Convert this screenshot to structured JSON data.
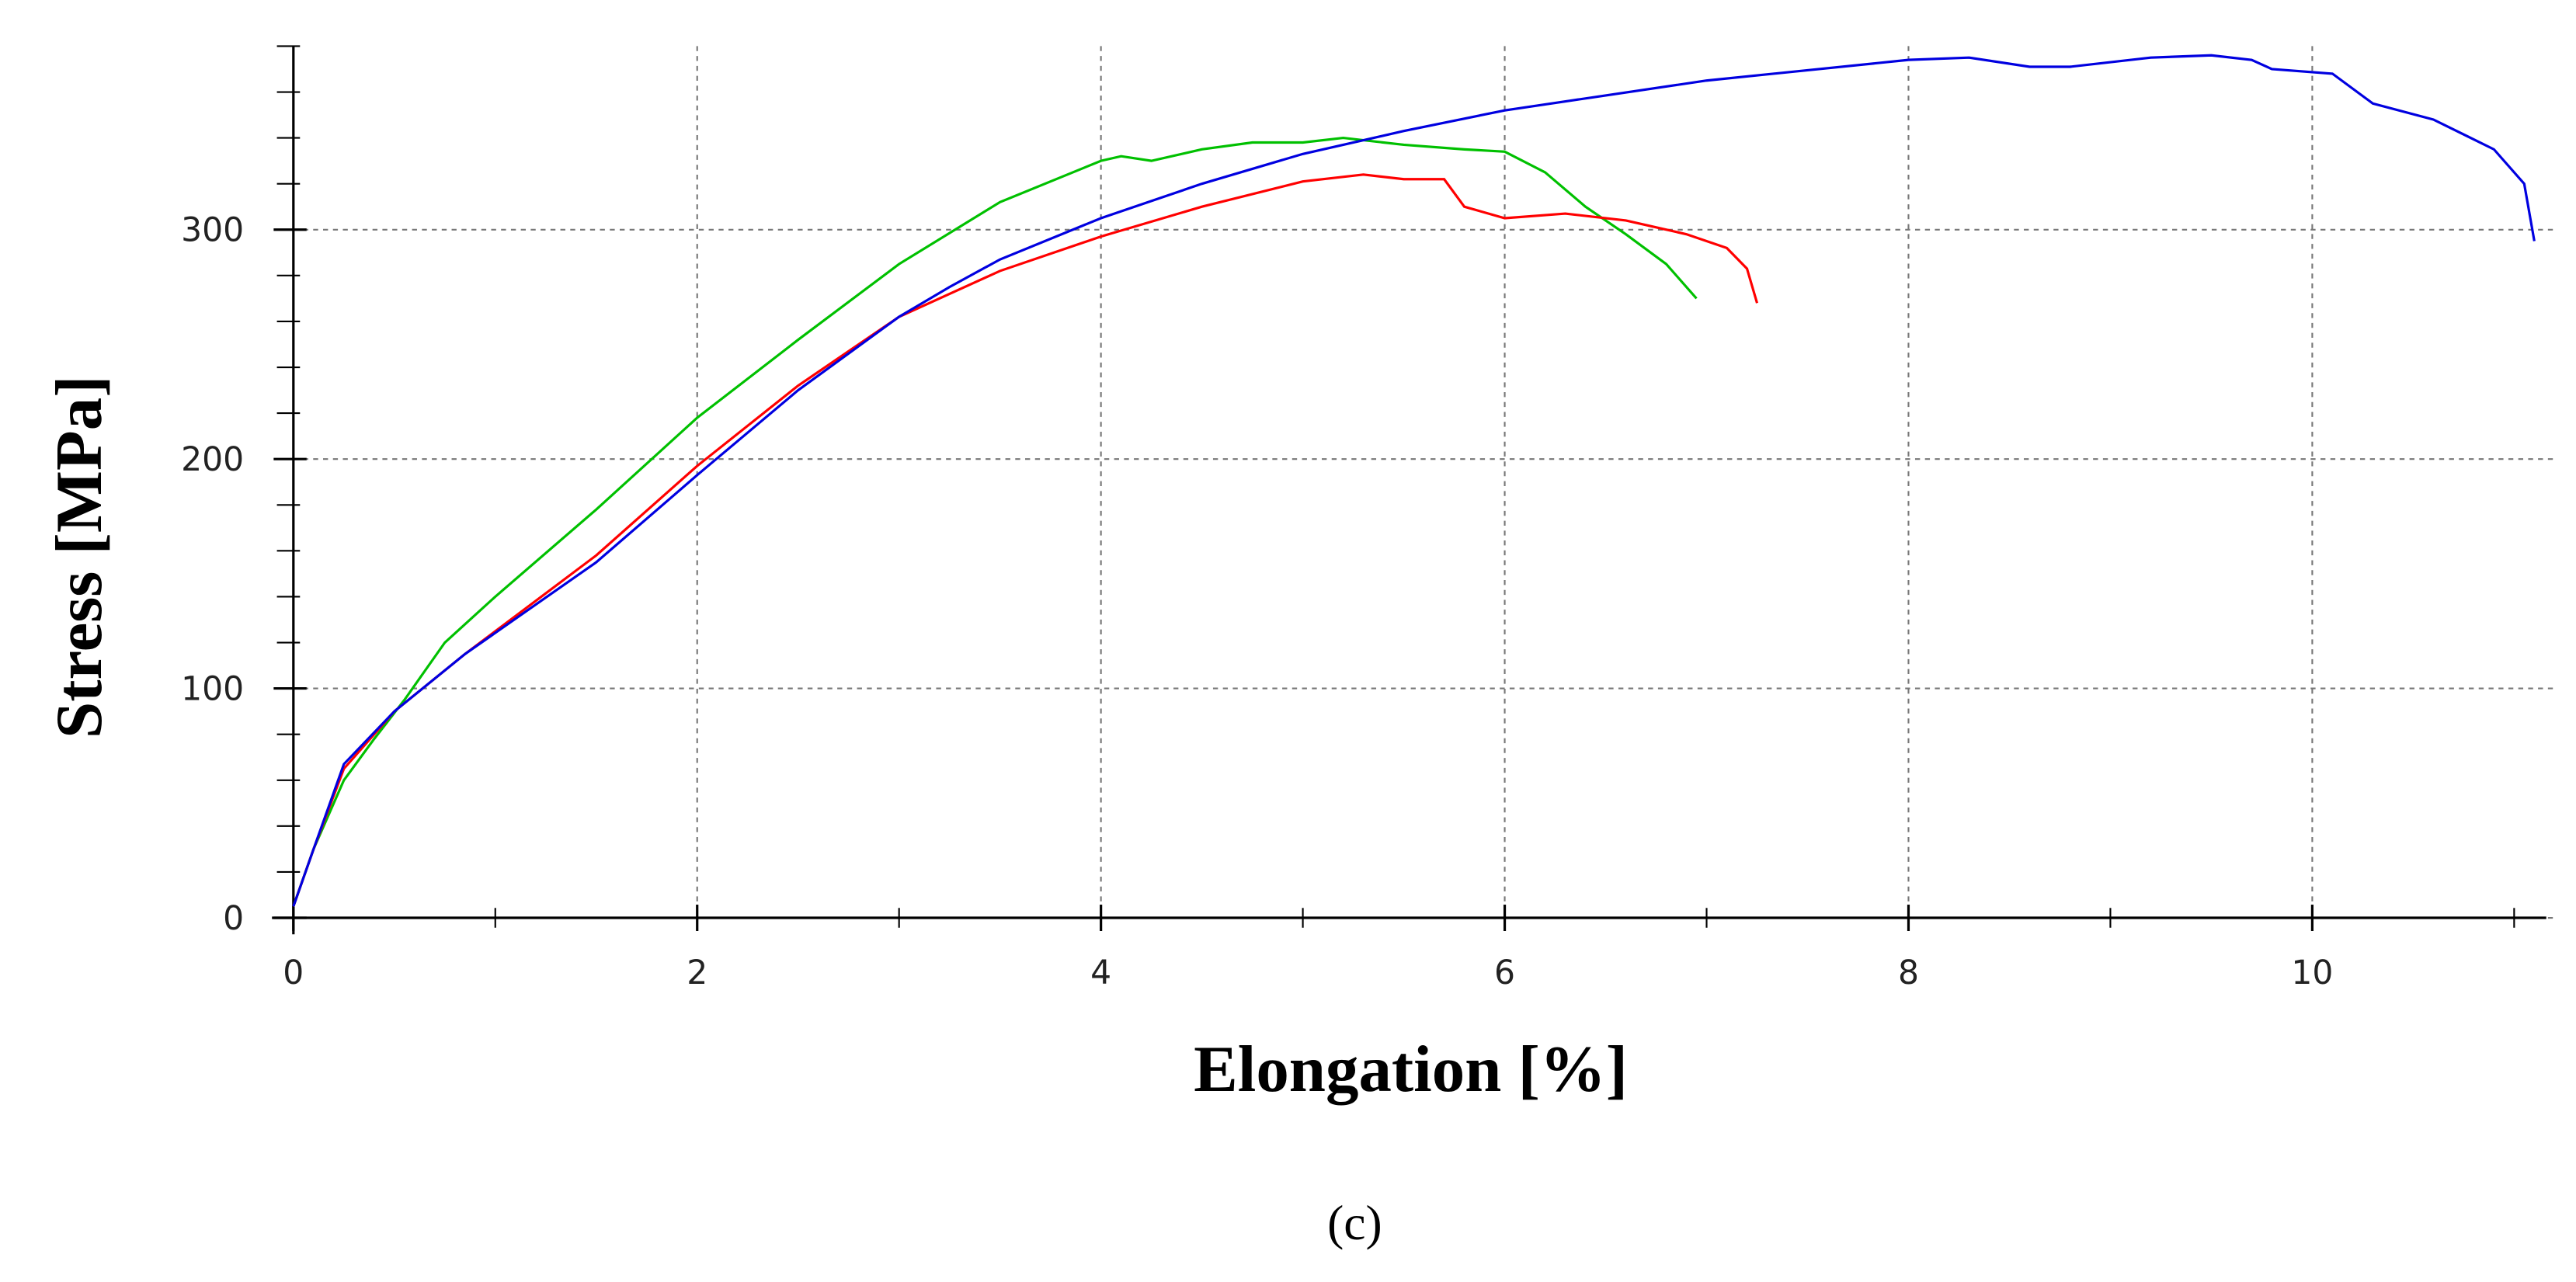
{
  "chart_data": {
    "type": "line",
    "x_label": "Elongation [%]",
    "y_label": "Stress [MPa]",
    "caption": "(c)",
    "xlim": [
      0,
      11.2
    ],
    "ylim": [
      0,
      380
    ],
    "xticks": [
      0,
      2,
      4,
      6,
      8,
      10
    ],
    "yticks": [
      0,
      100,
      200,
      300
    ],
    "xminorticks": [
      1,
      3,
      5,
      7,
      9,
      11
    ],
    "yminorticks": [
      20,
      40,
      60,
      80,
      120,
      140,
      160,
      180,
      220,
      240,
      260,
      280,
      320,
      340,
      360,
      380
    ],
    "grid": true,
    "series": [
      {
        "color": "#00c000",
        "x": [
          0,
          0.1,
          0.25,
          0.4,
          0.55,
          0.75,
          1,
          1.5,
          2,
          2.5,
          3,
          3.5,
          4,
          4.1,
          4.25,
          4.5,
          4.75,
          5,
          5.2,
          5.5,
          5.8,
          6,
          6.2,
          6.4,
          6.6,
          6.8,
          6.95
        ],
        "values": [
          5,
          30,
          60,
          78,
          95,
          120,
          140,
          178,
          218,
          252,
          285,
          312,
          330,
          332,
          330,
          335,
          338,
          338,
          340,
          337,
          335,
          334,
          325,
          310,
          298,
          285,
          270
        ]
      },
      {
        "color": "#ff0000",
        "x": [
          0,
          0.1,
          0.25,
          0.5,
          0.85,
          1.5,
          2,
          2.5,
          3,
          3.5,
          4,
          4.5,
          5,
          5.3,
          5.5,
          5.7,
          5.8,
          6,
          6.3,
          6.6,
          6.9,
          7.1,
          7.2,
          7.25
        ],
        "values": [
          5,
          30,
          65,
          90,
          115,
          158,
          197,
          232,
          262,
          282,
          297,
          310,
          321,
          324,
          322,
          322,
          310,
          305,
          307,
          304,
          298,
          292,
          283,
          268
        ]
      },
      {
        "color": "#0000e0",
        "x": [
          0,
          0.1,
          0.25,
          0.5,
          0.85,
          1.5,
          2,
          2.5,
          3,
          3.25,
          3.5,
          4,
          4.5,
          5,
          5.5,
          6,
          7,
          8,
          8.3,
          8.6,
          8.8,
          9.2,
          9.5,
          9.7,
          9.8,
          10.1,
          10.3,
          10.6,
          10.9,
          11.05,
          11.1
        ],
        "values": [
          5,
          30,
          67,
          90,
          115,
          155,
          193,
          230,
          262,
          275,
          287,
          305,
          320,
          333,
          343,
          352,
          365,
          374,
          375,
          371,
          371,
          375,
          376,
          374,
          370,
          368,
          355,
          348,
          335,
          320,
          295
        ]
      }
    ]
  }
}
